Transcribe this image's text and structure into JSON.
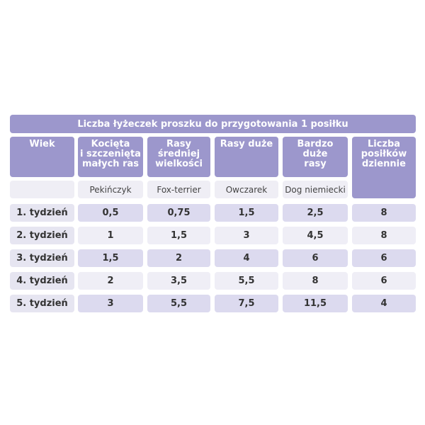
{
  "table": {
    "title": "Liczba łyżeczek proszku do przygotowania 1 posiłku",
    "header": [
      [
        "Wiek"
      ],
      [
        "Kocięta",
        "i szczenięta",
        "małych ras"
      ],
      [
        "Rasy",
        "średniej",
        "wielkości"
      ],
      [
        "Rasy duże"
      ],
      [
        "Bardzo",
        "duże",
        "rasy"
      ],
      [
        "Liczba",
        "posiłków",
        "dziennie"
      ]
    ],
    "subheader": [
      "Pekińczyk",
      "Fox-terrier",
      "Owczarek",
      "Dog niemiecki"
    ],
    "rows": [
      [
        "1. tydzień",
        "0,5",
        "0,75",
        "1,5",
        "2,5",
        "8"
      ],
      [
        "2. tydzień",
        "1",
        "1,5",
        "3",
        "4,5",
        "8"
      ],
      [
        "3. tydzień",
        "1,5",
        "2",
        "4",
        "6",
        "6"
      ],
      [
        "4. tydzień",
        "2",
        "3,5",
        "5,5",
        "8",
        "6"
      ],
      [
        "5. tydzień",
        "3",
        "5,5",
        "7,5",
        "11,5",
        "4"
      ]
    ]
  }
}
